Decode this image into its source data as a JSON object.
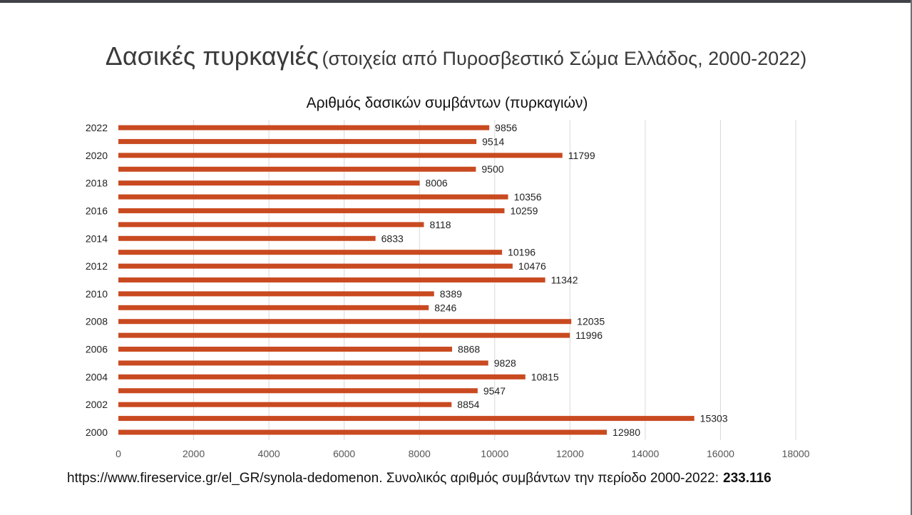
{
  "slide": {
    "title_main": "Δασικές πυρκαγιές",
    "title_sub": "(στοιχεία από Πυροσβεστικό Σώμα Ελλάδος, 2000-2022)"
  },
  "footer": {
    "source_text": "https://www.fireservice.gr/el_GR/synola-dedomenon. Συνολικός αριθμός συμβάντων την περίοδο 2000-2022:",
    "total": "233.116"
  },
  "colors": {
    "bar": "#c94a20",
    "grid": "#d9d9d9",
    "text": "#222222",
    "frame": "#3f4247"
  },
  "chart_data": {
    "type": "bar",
    "orientation": "horizontal",
    "title": "Αριθμός δασικών συμβάντων (πυρκαγιών)",
    "categories": [
      "2000",
      "2001",
      "2002",
      "2003",
      "2004",
      "2005",
      "2006",
      "2007",
      "2008",
      "2009",
      "2010",
      "2011",
      "2012",
      "2013",
      "2014",
      "2015",
      "2016",
      "2017",
      "2018",
      "2019",
      "2020",
      "2021",
      "2022"
    ],
    "visible_category_labels": [
      "2000",
      "2002",
      "2004",
      "2006",
      "2008",
      "2010",
      "2012",
      "2014",
      "2016",
      "2018",
      "2020",
      "2022"
    ],
    "values": [
      12980,
      15303,
      8854,
      9547,
      10815,
      9828,
      8868,
      11996,
      12035,
      8246,
      8389,
      11342,
      10476,
      10196,
      6833,
      8118,
      10259,
      10356,
      8006,
      9500,
      11799,
      9514,
      9856
    ],
    "xlim": [
      0,
      18000
    ],
    "x_ticks": [
      0,
      2000,
      4000,
      6000,
      8000,
      10000,
      12000,
      14000,
      16000,
      18000
    ],
    "xlabel": "",
    "ylabel": "",
    "grid": "vertical",
    "data_labels": true,
    "legend": "none"
  }
}
